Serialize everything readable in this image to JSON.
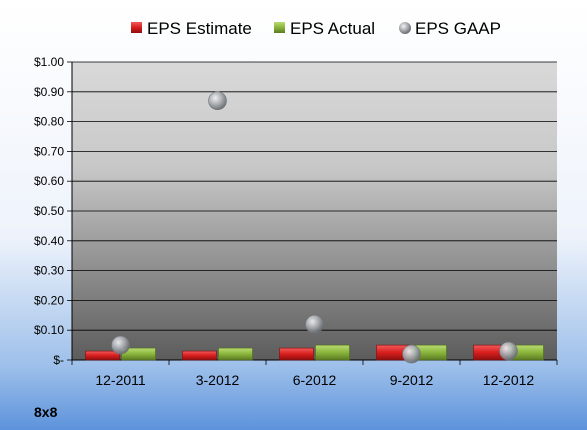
{
  "company_label": "8x8",
  "colors": {
    "estimate": "#e0202a",
    "actual": "#8cb43c",
    "gaap": "#9aa0a6"
  },
  "chart_data": {
    "type": "bar",
    "categories": [
      "12-2011",
      "3-2012",
      "6-2012",
      "9-2012",
      "12-2012"
    ],
    "series": [
      {
        "name": "EPS Estimate",
        "kind": "bar",
        "values": [
          0.03,
          0.03,
          0.04,
          0.05,
          0.05
        ]
      },
      {
        "name": "EPS Actual",
        "kind": "bar",
        "values": [
          0.04,
          0.04,
          0.05,
          0.05,
          0.05
        ]
      },
      {
        "name": "EPS GAAP",
        "kind": "scatter",
        "values": [
          0.05,
          0.87,
          0.12,
          0.02,
          0.03
        ]
      }
    ],
    "ylim": [
      0,
      1.0
    ],
    "yticks": [
      {
        "value": 1.0,
        "label": "$1.00"
      },
      {
        "value": 0.9,
        "label": "$0.90"
      },
      {
        "value": 0.8,
        "label": "$0.80"
      },
      {
        "value": 0.7,
        "label": "$0.70"
      },
      {
        "value": 0.6,
        "label": "$0.60"
      },
      {
        "value": 0.5,
        "label": "$0.50"
      },
      {
        "value": 0.4,
        "label": "$0.40"
      },
      {
        "value": 0.3,
        "label": "$0.30"
      },
      {
        "value": 0.2,
        "label": "$0.20"
      },
      {
        "value": 0.1,
        "label": "$0.10"
      },
      {
        "value": 0.0,
        "label": "$-"
      }
    ],
    "grid": true,
    "legend_position": "top"
  }
}
